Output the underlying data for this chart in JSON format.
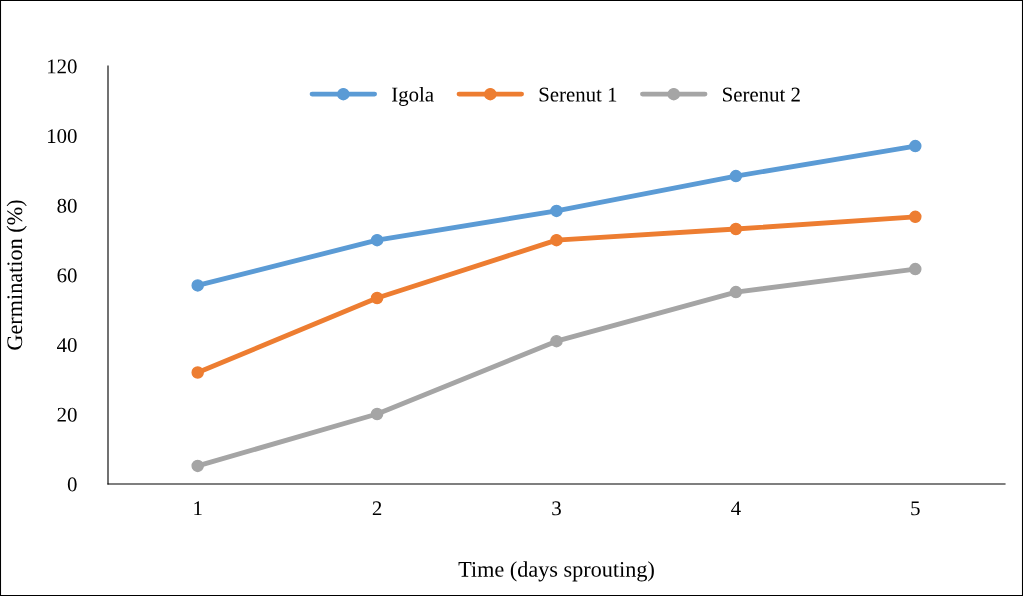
{
  "chart_data": {
    "type": "line",
    "xlabel": "Time (days sprouting)",
    "ylabel": "Germination (%)",
    "categories": [
      "1",
      "2",
      "3",
      "4",
      "5"
    ],
    "series": [
      {
        "name": "Igola",
        "color": "#5b9bd5",
        "values": [
          57,
          70,
          78.4,
          88.4,
          97
        ]
      },
      {
        "name": "Serenut 1",
        "color": "#ed7d31",
        "values": [
          32,
          53.4,
          70,
          73.2,
          76.7
        ]
      },
      {
        "name": "Serenut 2",
        "color": "#a5a5a5",
        "values": [
          5.2,
          20.1,
          41,
          55.1,
          61.7
        ]
      }
    ],
    "ylim": [
      0,
      120
    ],
    "yticks": [
      0,
      20,
      40,
      60,
      80,
      100,
      120
    ],
    "grid": false,
    "legend": "top",
    "marker": "circle",
    "line_style": "solid"
  }
}
